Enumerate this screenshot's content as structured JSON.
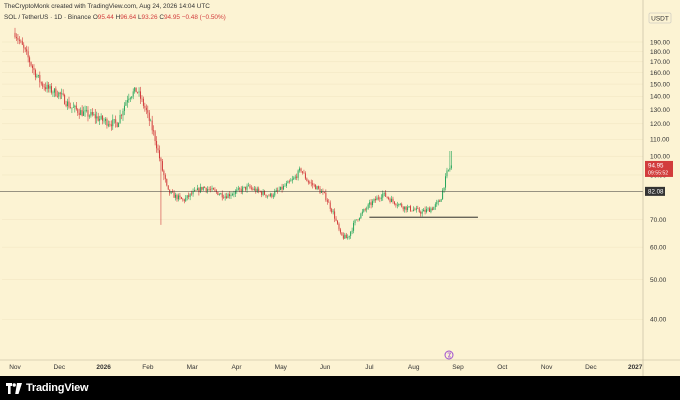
{
  "header": {
    "credit": "TheCryptoMonk created with TradingView.com, Aug 24, 2026 14:04 UTC",
    "symbol": "SOL / TetherUS · 1D · Binance",
    "open_label": "O",
    "open": "95.44",
    "high_label": "H",
    "high": "96.64",
    "low_label": "L",
    "low": "93.26",
    "close_label": "C",
    "close": "94.95",
    "change": "−0.48 (−0.50%)"
  },
  "footer": {
    "brand": "TradingView"
  },
  "colors": {
    "background": "#fcf3d3",
    "up": "#26a65b",
    "down": "#d23c3c",
    "line": "#000000",
    "price_badge": "#d23c3c",
    "level_badge": "#333333"
  },
  "chart_data": {
    "type": "candlestick",
    "currency": "USDT",
    "y_scale": "log",
    "ylim": [
      32,
      215
    ],
    "y_ticks": [
      {
        "value": 190,
        "label": "190.00"
      },
      {
        "value": 180,
        "label": "180.00"
      },
      {
        "value": 170,
        "label": "170.00"
      },
      {
        "value": 160,
        "label": "160.00"
      },
      {
        "value": 150,
        "label": "150.00"
      },
      {
        "value": 140,
        "label": "140.00"
      },
      {
        "value": 130,
        "label": "130.00"
      },
      {
        "value": 120,
        "label": "120.00"
      },
      {
        "value": 110,
        "label": "110.00"
      },
      {
        "value": 100,
        "label": "100.00"
      },
      {
        "value": 90,
        "label": "90.00"
      },
      {
        "value": 70,
        "label": "70.00"
      },
      {
        "value": 60,
        "label": "60.00"
      },
      {
        "value": 50,
        "label": "50.00"
      },
      {
        "value": 40,
        "label": "40.00"
      }
    ],
    "x_ticks": [
      "Nov",
      "Dec",
      "2026",
      "Feb",
      "Mar",
      "Apr",
      "May",
      "Jun",
      "Jul",
      "Aug",
      "Sep",
      "Oct",
      "Nov",
      "Dec",
      "2027"
    ],
    "x_ticks_bold": [
      2,
      14
    ],
    "last_price": {
      "value": 94.95,
      "label": "94.95",
      "countdown": "09:55:52"
    },
    "levels": [
      {
        "value": 82.08,
        "label": "82.08",
        "style": "full"
      },
      {
        "value": 71,
        "style": "segment",
        "from_month": 8.0,
        "to_month": 10.45
      }
    ],
    "trend_path": [
      [
        0.0,
        200
      ],
      [
        0.25,
        178
      ],
      [
        0.45,
        160
      ],
      [
        0.6,
        150
      ],
      [
        0.8,
        145
      ],
      [
        1.0,
        142
      ],
      [
        1.25,
        132
      ],
      [
        1.5,
        128
      ],
      [
        1.8,
        125
      ],
      [
        2.0,
        122
      ],
      [
        2.3,
        120
      ],
      [
        2.55,
        140
      ],
      [
        2.75,
        145
      ],
      [
        2.95,
        130
      ],
      [
        3.15,
        112
      ],
      [
        3.3,
        95
      ],
      [
        3.45,
        82
      ],
      [
        3.6,
        80
      ],
      [
        3.8,
        78
      ],
      [
        4.0,
        81
      ],
      [
        4.25,
        84
      ],
      [
        4.5,
        82
      ],
      [
        4.75,
        80
      ],
      [
        5.0,
        82
      ],
      [
        5.25,
        84
      ],
      [
        5.5,
        82
      ],
      [
        5.75,
        80
      ],
      [
        6.0,
        83
      ],
      [
        6.3,
        88
      ],
      [
        6.45,
        93
      ],
      [
        6.6,
        87
      ],
      [
        6.8,
        84
      ],
      [
        7.0,
        80
      ],
      [
        7.2,
        72
      ],
      [
        7.35,
        64
      ],
      [
        7.5,
        63
      ],
      [
        7.7,
        70
      ],
      [
        8.0,
        76
      ],
      [
        8.3,
        81
      ],
      [
        8.5,
        78
      ],
      [
        8.8,
        75
      ],
      [
        9.0,
        74
      ],
      [
        9.2,
        73
      ],
      [
        9.45,
        75
      ],
      [
        9.6,
        78
      ],
      [
        9.75,
        91
      ],
      [
        9.85,
        95
      ]
    ]
  }
}
